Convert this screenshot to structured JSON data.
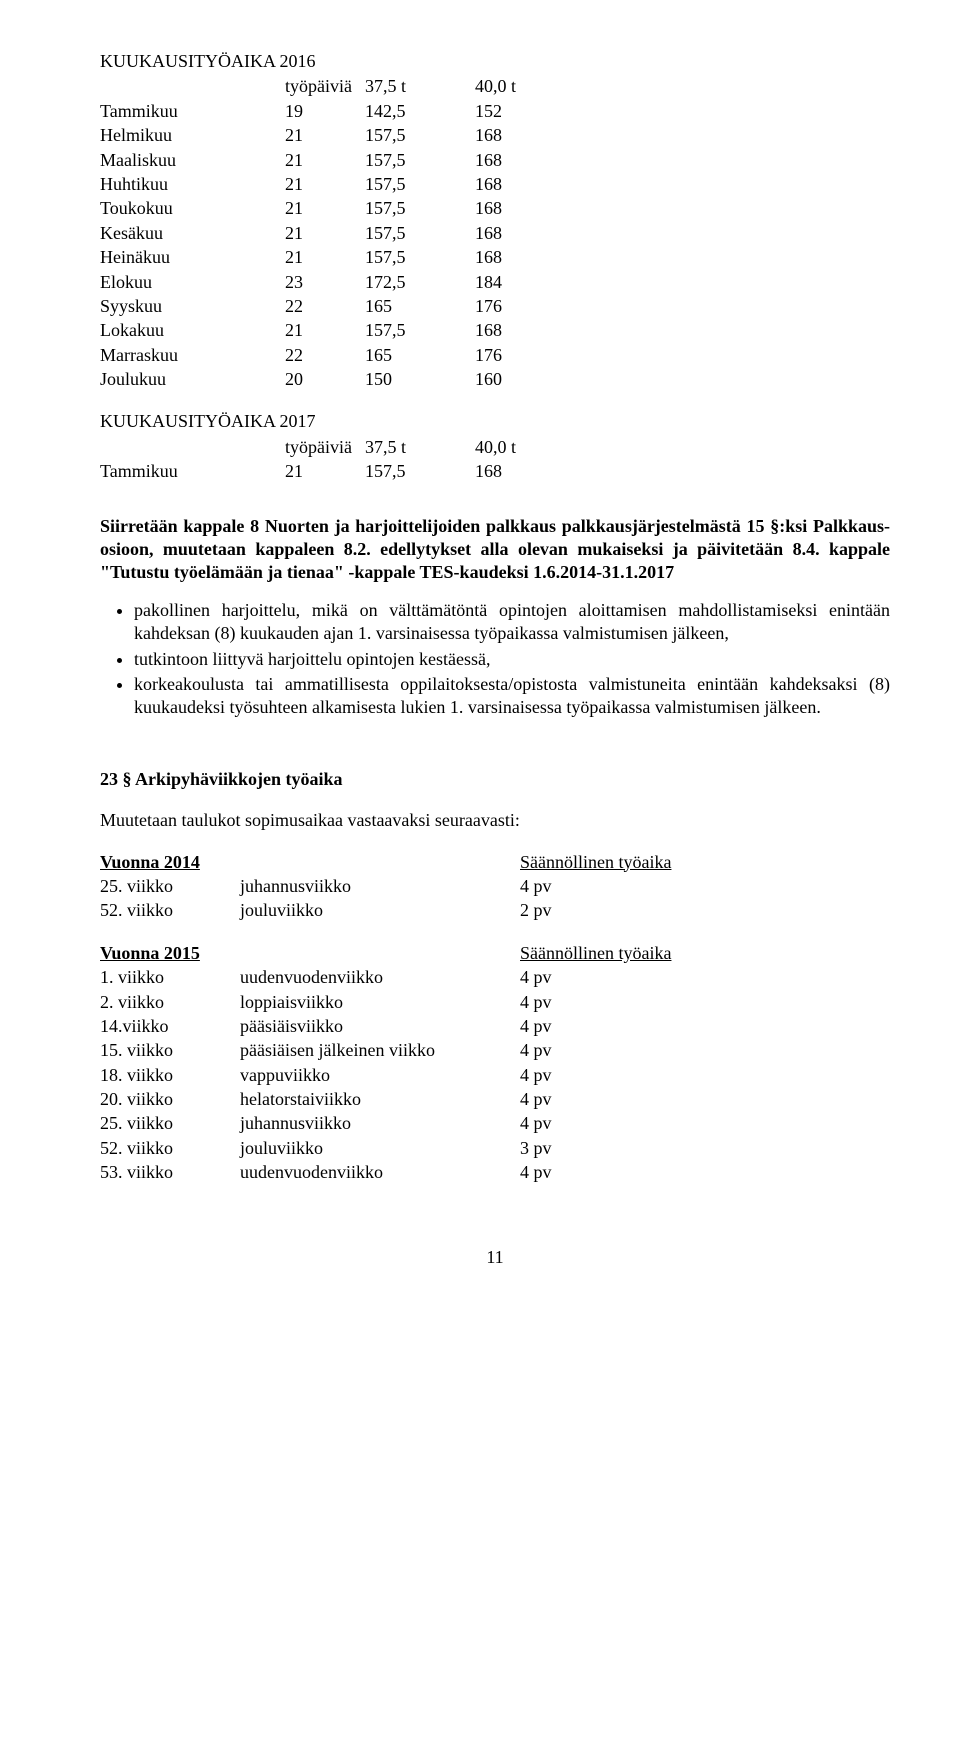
{
  "table2016": {
    "title": "KUUKAUSITYÖAIKA 2016",
    "header": {
      "label": "työpäiviä",
      "a": "37,5 t",
      "b": "40,0 t"
    },
    "rows": [
      {
        "label": "Tammikuu",
        "n": "19",
        "a": "142,5",
        "b": "152"
      },
      {
        "label": "Helmikuu",
        "n": "21",
        "a": "157,5",
        "b": "168"
      },
      {
        "label": "Maaliskuu",
        "n": "21",
        "a": "157,5",
        "b": "168"
      },
      {
        "label": "Huhtikuu",
        "n": "21",
        "a": "157,5",
        "b": "168"
      },
      {
        "label": "Toukokuu",
        "n": "21",
        "a": "157,5",
        "b": "168"
      },
      {
        "label": "Kesäkuu",
        "n": "21",
        "a": "157,5",
        "b": "168"
      },
      {
        "label": "Heinäkuu",
        "n": "21",
        "a": "157,5",
        "b": "168"
      },
      {
        "label": "Elokuu",
        "n": "23",
        "a": "172,5",
        "b": "184"
      },
      {
        "label": "Syyskuu",
        "n": "22",
        "a": "165",
        "b": "176"
      },
      {
        "label": "Lokakuu",
        "n": "21",
        "a": "157,5",
        "b": "168"
      },
      {
        "label": "Marraskuu",
        "n": "22",
        "a": "165",
        "b": "176"
      },
      {
        "label": "Joulukuu",
        "n": "20",
        "a": "150",
        "b": "160"
      }
    ]
  },
  "table2017": {
    "title": "KUUKAUSITYÖAIKA 2017",
    "header": {
      "label": "työpäiviä",
      "a": "37,5 t",
      "b": "40,0 t"
    },
    "rows": [
      {
        "label": "Tammikuu",
        "n": "21",
        "a": "157,5",
        "b": "168"
      }
    ]
  },
  "boldPara": "Siirretään kappale 8 Nuorten ja harjoittelijoiden palkkaus palkkausjärjestelmästä 15 §:ksi Palkkaus-osioon, muutetaan kappaleen 8.2. edellytykset alla olevan mukaiseksi ja päivitetään 8.4. kappale \"Tutustu työelämään ja tienaa\" -kappale TES-kaudeksi 1.6.2014-31.1.2017",
  "bullets": [
    "pakollinen harjoittelu, mikä on välttämätöntä opintojen aloittamisen mahdollistamiseksi enintään kahdeksan (8) kuukauden ajan 1. varsinaisessa työpaikassa valmistumisen jälkeen,",
    "tutkintoon liittyvä harjoittelu opintojen kestäessä,",
    "korkeakoulusta tai ammatillisesta oppilaitoksesta/opistosta valmistuneita enintään kahdeksaksi (8) kuukaudeksi työsuhteen alkamisesta lukien 1. varsinaisessa työpaikassa valmistumisen jälkeen."
  ],
  "section23": {
    "heading": "23 § Arkipyhäviikkojen työaika",
    "intro": "Muutetaan taulukot sopimusaikaa vastaavaksi seuraavasti:"
  },
  "sched2014": {
    "year": "Vuonna 2014",
    "colhead": "Säännöllinen työaika",
    "rows": [
      {
        "w": "25. viikko",
        "name": "juhannusviikko",
        "pv": "4 pv"
      },
      {
        "w": "52. viikko",
        "name": "jouluviikko",
        "pv": "2 pv"
      }
    ]
  },
  "sched2015": {
    "year": "Vuonna 2015",
    "colhead": "Säännöllinen työaika",
    "rows": [
      {
        "w": "1. viikko",
        "name": "uudenvuodenviikko",
        "pv": "4 pv"
      },
      {
        "w": "2. viikko",
        "name": "loppiaisviikko",
        "pv": "4 pv"
      },
      {
        "w": "14.viikko",
        "name": "pääsiäisviikko",
        "pv": "4 pv"
      },
      {
        "w": "15. viikko",
        "name": "pääsiäisen jälkeinen viikko",
        "pv": "4 pv"
      },
      {
        "w": "18. viikko",
        "name": "vappuviikko",
        "pv": "4 pv"
      },
      {
        "w": "20. viikko",
        "name": "helatorstaiviikko",
        "pv": "4 pv"
      },
      {
        "w": "25. viikko",
        "name": "juhannusviikko",
        "pv": "4 pv"
      },
      {
        "w": "52. viikko",
        "name": "jouluviikko",
        "pv": "3 pv"
      },
      {
        "w": "53. viikko",
        "name": "uudenvuodenviikko",
        "pv": "4 pv"
      }
    ]
  },
  "pageNumber": "11"
}
